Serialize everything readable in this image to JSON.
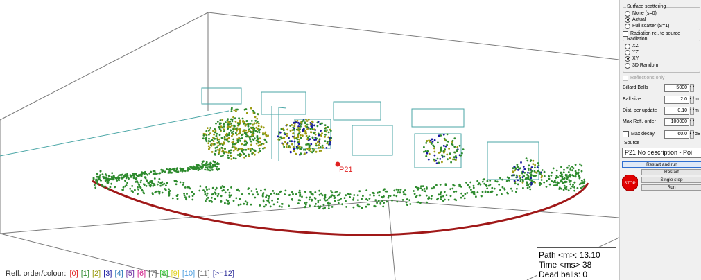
{
  "legend": {
    "label": "Refl. order/colour:",
    "items": [
      {
        "text": "[0]",
        "color": "#e02020"
      },
      {
        "text": "[1]",
        "color": "#2e8b2e"
      },
      {
        "text": "[2]",
        "color": "#9a9a10"
      },
      {
        "text": "[3]",
        "color": "#1a1aa0"
      },
      {
        "text": "[4]",
        "color": "#2a7ab8"
      },
      {
        "text": "[5]",
        "color": "#6a2aa0"
      },
      {
        "text": "[6]",
        "color": "#d0208a"
      },
      {
        "text": "[7]",
        "color": "#555555"
      },
      {
        "text": "[8]",
        "color": "#30c030"
      },
      {
        "text": "[9]",
        "color": "#e0d020"
      },
      {
        "text": "[10]",
        "color": "#50a0e0"
      },
      {
        "text": "[11]",
        "color": "#777777"
      },
      {
        "text": "[>=12]",
        "color": "#3a3aa0"
      }
    ]
  },
  "readout": {
    "path": "Path <m>: 13.10",
    "time": "Time <ms> 38",
    "dead": "Dead balls: 0"
  },
  "scene": {
    "source_label": "P21",
    "colors": {
      "room_lines": "#7a7a7a",
      "window_lines": "#4aa6a6",
      "boundary": "#a01818",
      "order1": "#2e8b2e",
      "order2": "#9a9a10",
      "order3": "#1a1aa0",
      "source": "#e02020"
    }
  },
  "panel": {
    "surface_scattering": {
      "title": "Surface scattering",
      "options": [
        "None (s=0)",
        "Actual",
        "Full scatter (S=1)"
      ],
      "selected": 1
    },
    "radiation_rel_label": "Radiation rel. to source",
    "radiation": {
      "title": "Radiation",
      "options": [
        "XZ",
        "YZ",
        "XY",
        "3D Random"
      ],
      "selected": 2
    },
    "reflections_only_label": "Reflections only",
    "billiard_balls": {
      "label": "Billard Balls",
      "value": "5000",
      "unit": ""
    },
    "ball_size": {
      "label": "Ball size",
      "value": "2.0",
      "unit": "m"
    },
    "dist_per_update": {
      "label": "Dist. per update",
      "value": "0.10",
      "unit": "m"
    },
    "max_refl_order": {
      "label": "Max Refl. order",
      "value": "100000",
      "unit": ""
    },
    "max_decay": {
      "label": "Max decay",
      "value": "60.0",
      "unit": "dB"
    },
    "source_label": "Source",
    "source_value": "P21 No description  -  Poi",
    "buttons": {
      "restart_and_run": "Restart and run",
      "restart": "Restart",
      "single_step": "Single step",
      "run": "Run",
      "stop": "STOP"
    }
  }
}
